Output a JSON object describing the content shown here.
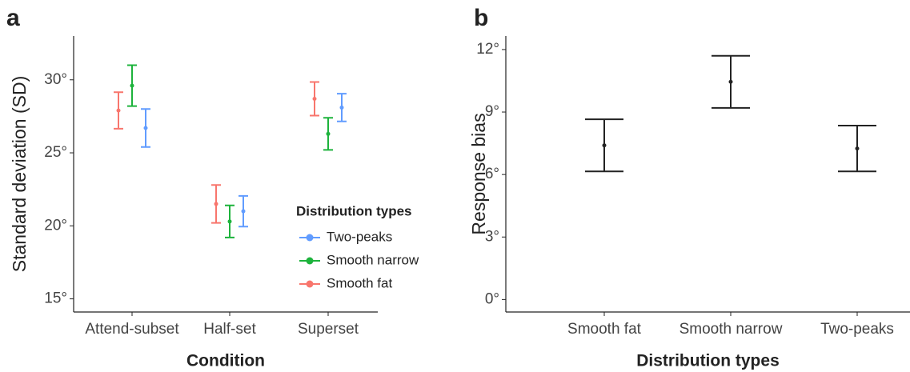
{
  "chart_data": [
    {
      "type": "errorbar",
      "panel_label": "a",
      "x_label": "Condition",
      "y_label": "Standard deviation (SD)",
      "categories": [
        "Attend-subset",
        "Half-set",
        "Superset"
      ],
      "series": [
        {
          "name": "Smooth fat",
          "color": "#f8766d",
          "values": [
            27.9,
            21.5,
            28.7
          ],
          "errors": [
            1.25,
            1.3,
            1.15
          ]
        },
        {
          "name": "Smooth narrow",
          "color": "#1db33c",
          "values": [
            29.6,
            20.3,
            26.3
          ],
          "errors": [
            1.4,
            1.1,
            1.1
          ]
        },
        {
          "name": "Two-peaks",
          "color": "#619cff",
          "values": [
            26.7,
            21.0,
            28.1
          ],
          "errors": [
            1.3,
            1.05,
            0.95
          ]
        }
      ],
      "legend_title": "Distribution types",
      "legend": "right",
      "ylim": [
        14.1,
        33
      ],
      "yticks": [
        {
          "value": 15,
          "label": "15°"
        },
        {
          "value": 20,
          "label": "20°"
        },
        {
          "value": 25,
          "label": "25°"
        },
        {
          "value": 30,
          "label": "30°"
        }
      ]
    },
    {
      "type": "errorbar",
      "panel_label": "b",
      "x_label": "Distribution types",
      "y_label": "Response bias",
      "categories": [
        "Smooth fat",
        "Smooth narrow",
        "Two-peaks"
      ],
      "values": [
        7.4,
        10.45,
        7.25
      ],
      "errors": [
        1.25,
        1.25,
        1.1
      ],
      "color": "#222222",
      "ylim": [
        -0.6,
        12.65
      ],
      "yticks": [
        {
          "value": 0,
          "label": "0°"
        },
        {
          "value": 3,
          "label": "3°"
        },
        {
          "value": 6,
          "label": "6°"
        },
        {
          "value": 9,
          "label": "9°"
        },
        {
          "value": 12,
          "label": "12°"
        }
      ]
    }
  ]
}
